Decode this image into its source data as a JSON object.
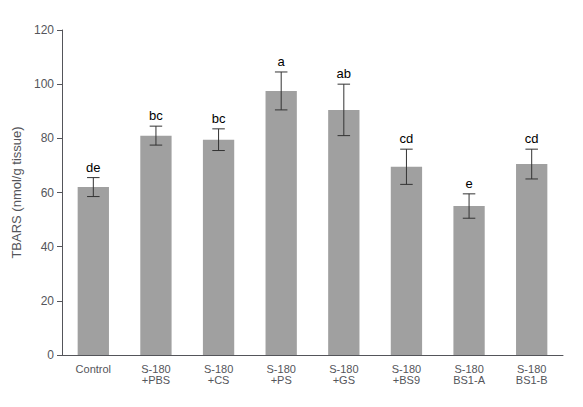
{
  "chart_data": {
    "type": "bar",
    "categories": [
      "Control",
      "S-180\n+PBS",
      "S-180\n+CS",
      "S-180\n+PS",
      "S-180\n+GS",
      "S-180\n+BS9",
      "S-180\nBS1-A",
      "S-180\nBS1-B"
    ],
    "values": [
      62,
      81,
      79.5,
      97.5,
      90.5,
      69.5,
      55,
      70.5
    ],
    "errors": [
      3.5,
      3.5,
      4.0,
      7.0,
      9.5,
      6.5,
      4.5,
      5.5
    ],
    "annotations": [
      "de",
      "bc",
      "bc",
      "a",
      "ab",
      "cd",
      "e",
      "cd"
    ],
    "color": "#a0a0a0",
    "ylabel": "TBARS (nmol/g tissue)",
    "ylim": [
      0,
      120
    ],
    "yticks": [
      0,
      20,
      40,
      60,
      80,
      100,
      120
    ],
    "grid": false
  }
}
